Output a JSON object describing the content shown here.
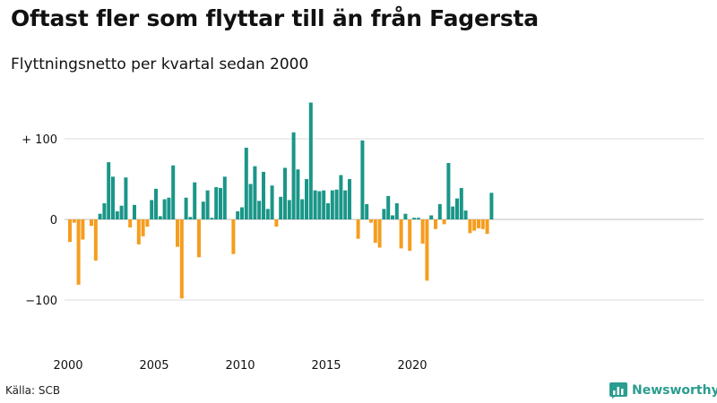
{
  "header": {
    "title": "Oftast fler som flyttar till än från Fagersta",
    "subtitle": "Flyttningsnetto per kvartal sedan 2000"
  },
  "footer": {
    "source": "Källa: SCB",
    "brand": "Newsworthy",
    "brand_icon": "bar-chart-logo-icon"
  },
  "colors": {
    "positive": "#1a9688",
    "negative": "#f59d1f",
    "grid": "#dedede",
    "brand": "#2a9d8f"
  },
  "chart_data": {
    "type": "bar",
    "title": "Flyttningsnetto per kvartal sedan 2000",
    "xlabel": "",
    "ylabel": "",
    "ylim": [
      -130,
      150
    ],
    "y_ticks": [
      {
        "value": 100,
        "label": "+ 100"
      },
      {
        "value": 0,
        "label": "0"
      },
      {
        "value": -100,
        "label": "−100"
      }
    ],
    "x_ticks": [
      {
        "year": 2000,
        "label": "2000"
      },
      {
        "year": 2005,
        "label": "2005"
      },
      {
        "year": 2010,
        "label": "2010"
      },
      {
        "year": 2015,
        "label": "2015"
      },
      {
        "year": 2020,
        "label": "2020"
      }
    ],
    "start_year": 2000,
    "periods_per_year": 4,
    "values": [
      -28,
      -4,
      -81,
      -25,
      0,
      -8,
      -51,
      7,
      20,
      71,
      53,
      10,
      17,
      52,
      -10,
      18,
      -31,
      -21,
      -9,
      24,
      38,
      4,
      25,
      27,
      67,
      -34,
      -98,
      27,
      3,
      46,
      -47,
      22,
      36,
      2,
      40,
      39,
      53,
      0,
      -43,
      10,
      15,
      89,
      44,
      66,
      23,
      59,
      13,
      42,
      -9,
      28,
      64,
      24,
      108,
      62,
      25,
      50,
      145,
      36,
      35,
      36,
      20,
      36,
      37,
      55,
      36,
      50,
      0,
      -24,
      98,
      19,
      -4,
      -29,
      -35,
      13,
      29,
      5,
      20,
      -36,
      7,
      -39,
      2,
      2,
      -30,
      -76,
      5,
      -12,
      19,
      -6,
      70,
      16,
      26,
      39,
      11,
      -17,
      -14,
      -11,
      -12,
      -18,
      33
    ]
  }
}
